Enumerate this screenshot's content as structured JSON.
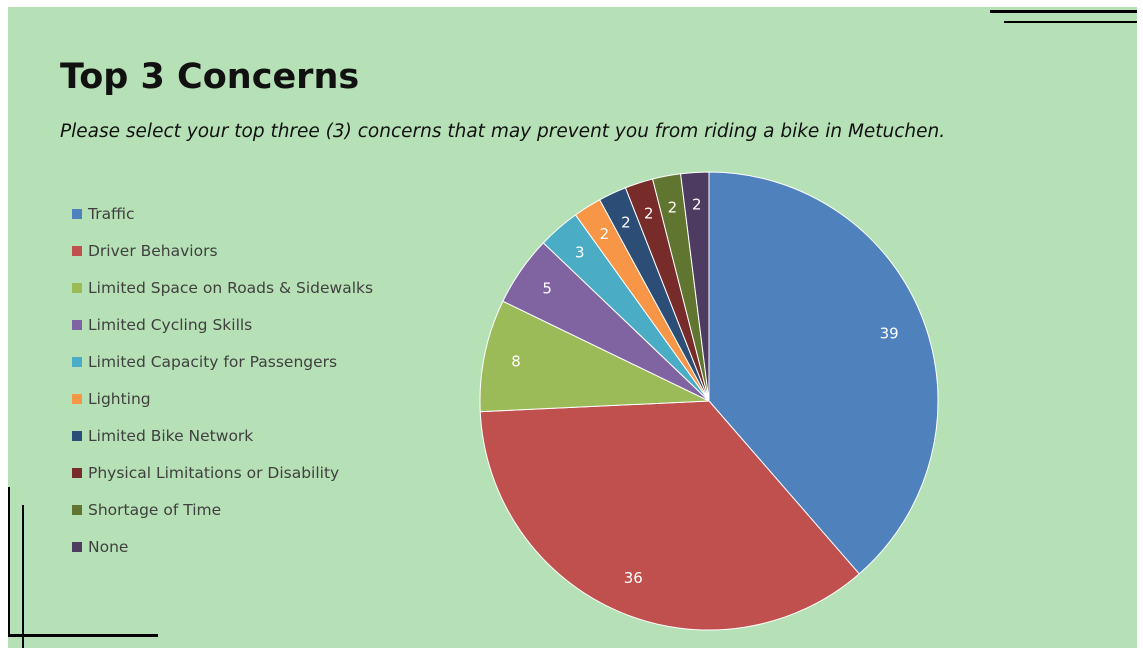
{
  "slide": {
    "title": "Top 3 Concerns",
    "subtitle": "Please select your top three (3) concerns that may prevent you from riding a bike in Metuchen."
  },
  "chart_data": {
    "type": "pie",
    "categories": [
      "Traffic",
      "Driver Behaviors",
      "Limited Space on Roads & Sidewalks",
      "Limited Cycling Skills",
      "Limited Capacity for Passengers",
      "Lighting",
      "Limited Bike Network",
      "Physical Limitations or Disability",
      "Shortage of Time",
      "None"
    ],
    "values": [
      39,
      36,
      8,
      5,
      3,
      2,
      2,
      2,
      2,
      2
    ],
    "colors": [
      "#4f81bd",
      "#c0504d",
      "#9bbb59",
      "#8064a2",
      "#4bacc6",
      "#f79646",
      "#2c4d75",
      "#772c2a",
      "#5f7530",
      "#4d3b62"
    ],
    "data_labels": [
      "39",
      "36",
      "8",
      "5",
      "3",
      "2",
      "2",
      "2",
      "2",
      "2"
    ],
    "legend_position": "left",
    "start_angle": "12 o'clock",
    "direction": "clockwise"
  }
}
